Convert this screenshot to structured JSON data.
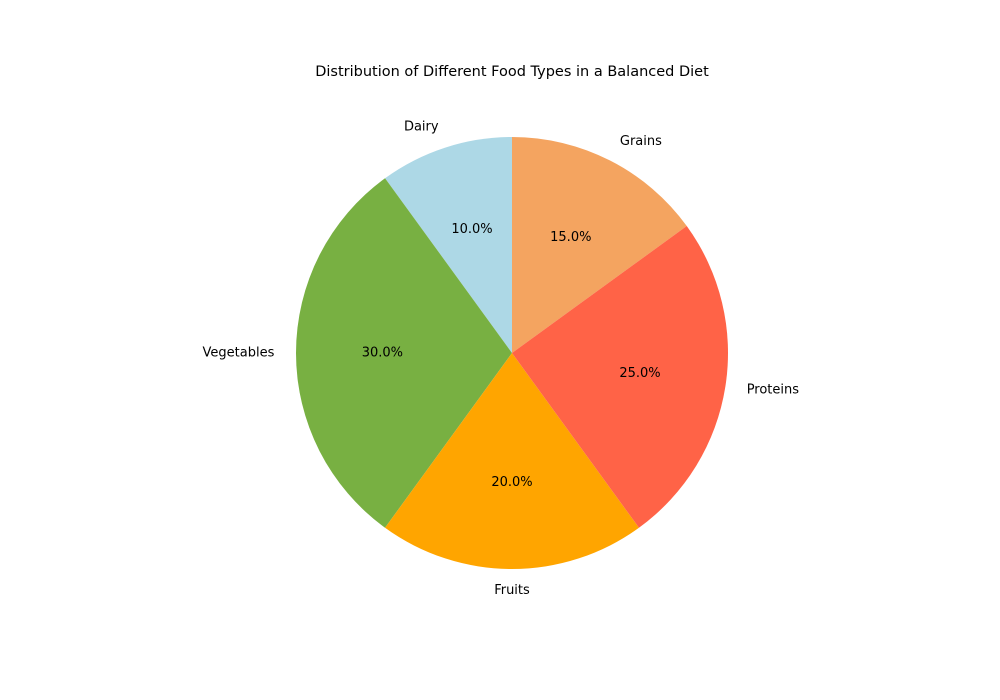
{
  "chart_data": {
    "type": "pie",
    "title": "Distribution of Different Food Types in a Balanced Diet",
    "categories": [
      "Grains",
      "Dairy",
      "Vegetables",
      "Fruits",
      "Proteins"
    ],
    "values": [
      15,
      10,
      30,
      20,
      25
    ],
    "percent_labels": [
      "15.0%",
      "10.0%",
      "30.0%",
      "20.0%",
      "25.0%"
    ],
    "colors": [
      "#f4a460",
      "#add8e6",
      "#78b042",
      "#ffa500",
      "#ff6347"
    ],
    "start_angle_deg": 36,
    "direction": "counterclockwise",
    "legend": "none"
  }
}
